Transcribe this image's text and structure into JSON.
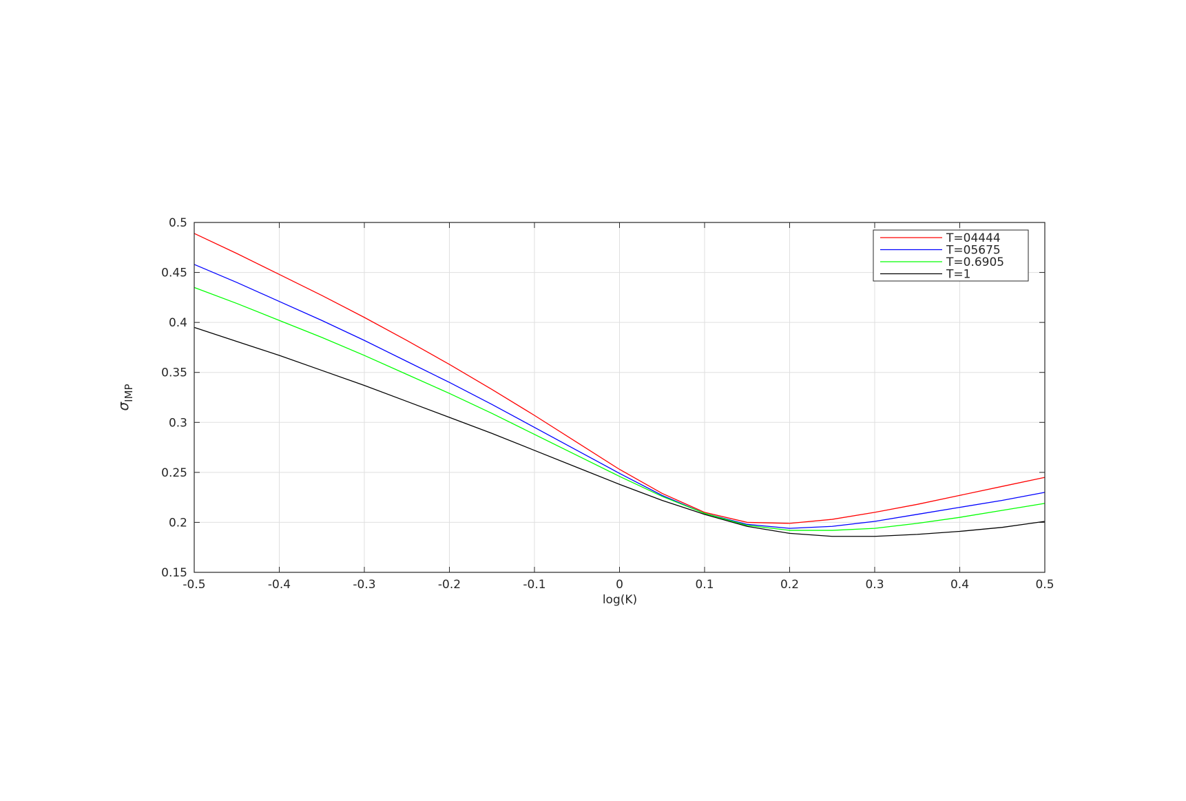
{
  "chart_data": {
    "type": "line",
    "xlabel": "log(K)",
    "ylabel": "σ",
    "ylabel_sub": "IMP",
    "x": [
      -0.5,
      -0.45,
      -0.4,
      -0.35,
      -0.3,
      -0.25,
      -0.2,
      -0.15,
      -0.1,
      -0.05,
      0,
      0.05,
      0.1,
      0.15,
      0.2,
      0.25,
      0.3,
      0.35,
      0.4,
      0.45,
      0.5
    ],
    "series": [
      {
        "name": "T=04444",
        "color": "#ff0000",
        "values": [
          0.489,
          0.469,
          0.448,
          0.427,
          0.405,
          0.382,
          0.358,
          0.333,
          0.307,
          0.28,
          0.253,
          0.229,
          0.21,
          0.2,
          0.199,
          0.203,
          0.21,
          0.218,
          0.227,
          0.236,
          0.245
        ]
      },
      {
        "name": "T=05675",
        "color": "#0000ff",
        "values": [
          0.458,
          0.44,
          0.421,
          0.402,
          0.382,
          0.361,
          0.34,
          0.318,
          0.295,
          0.272,
          0.249,
          0.227,
          0.209,
          0.198,
          0.194,
          0.196,
          0.201,
          0.208,
          0.215,
          0.222,
          0.23
        ]
      },
      {
        "name": "T=0.6905",
        "color": "#00ff00",
        "values": [
          0.435,
          0.419,
          0.402,
          0.385,
          0.367,
          0.348,
          0.329,
          0.309,
          0.288,
          0.267,
          0.246,
          0.226,
          0.209,
          0.197,
          0.192,
          0.192,
          0.194,
          0.199,
          0.205,
          0.212,
          0.219
        ]
      },
      {
        "name": "T=1",
        "color": "#000000",
        "values": [
          0.395,
          0.381,
          0.367,
          0.352,
          0.337,
          0.321,
          0.305,
          0.289,
          0.272,
          0.255,
          0.238,
          0.222,
          0.208,
          0.196,
          0.189,
          0.186,
          0.186,
          0.188,
          0.191,
          0.195,
          0.201
        ]
      }
    ],
    "xlim": [
      -0.5,
      0.5
    ],
    "xticks": [
      -0.5,
      -0.4,
      -0.3,
      -0.2,
      -0.1,
      0,
      0.1,
      0.2,
      0.3,
      0.4,
      0.5
    ],
    "ylim": [
      0.15,
      0.5
    ],
    "yticks": [
      0.15,
      0.2,
      0.25,
      0.3,
      0.35,
      0.4,
      0.45,
      0.5
    ],
    "grid": true,
    "legend": "top-right"
  }
}
